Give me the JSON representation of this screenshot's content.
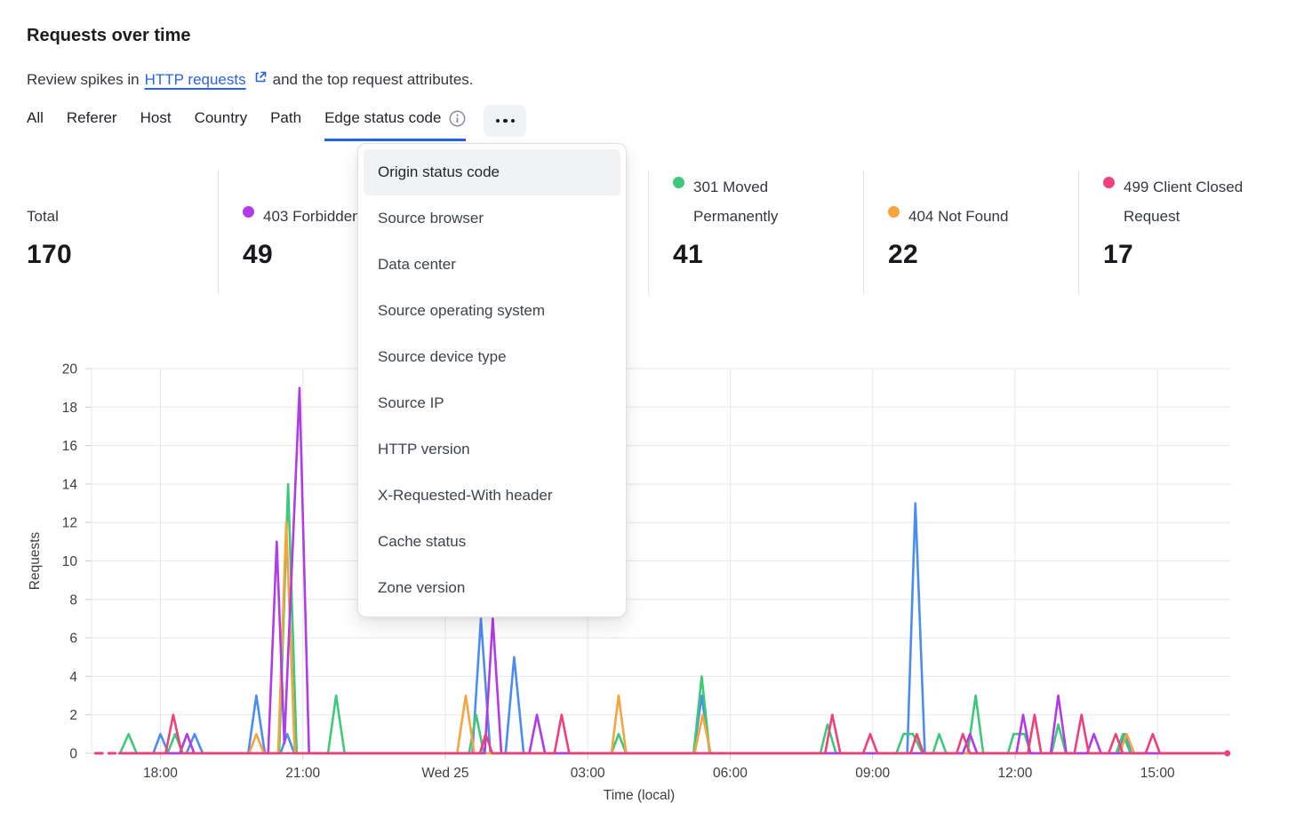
{
  "header": {
    "title": "Requests over time",
    "subtitle_prefix": "Review spikes in",
    "subtitle_link": "HTTP requests",
    "subtitle_suffix": "and the top request attributes."
  },
  "tabs": {
    "items": [
      {
        "label": "All",
        "active": false
      },
      {
        "label": "Referer",
        "active": false
      },
      {
        "label": "Host",
        "active": false
      },
      {
        "label": "Country",
        "active": false
      },
      {
        "label": "Path",
        "active": false
      },
      {
        "label": "Edge status code",
        "active": true,
        "info_icon": true
      }
    ],
    "more_icon": "more-options-ellipsis"
  },
  "stats": {
    "cards": [
      {
        "label": "Total",
        "value": "170",
        "dot_color": null
      },
      {
        "label": "403 Forbidden",
        "value": "49",
        "dot_color": "#b13be8"
      },
      {
        "label": "301 Moved Permanently",
        "value": "41",
        "dot_color": "#3ec97a"
      },
      {
        "label": "404 Not Found",
        "value": "22",
        "dot_color": "#f7a43d"
      },
      {
        "label": "499 Client Closed Request",
        "value": "17",
        "dot_color": "#f0407a"
      }
    ]
  },
  "dropdown": {
    "highlighted_index": 0,
    "items": [
      "Origin status code",
      "Source browser",
      "Data center",
      "Source operating system",
      "Source device type",
      "Source IP",
      "HTTP version",
      "X-Requested-With header",
      "Cache status",
      "Zone version"
    ]
  },
  "chart_data": {
    "type": "line",
    "xlabel": "Time (local)",
    "ylabel": "Requests",
    "ylim": [
      0,
      20
    ],
    "y_tick_step": 2,
    "grid": true,
    "x_domain_hours": [
      0,
      24
    ],
    "x_ticks": [
      {
        "t": 1.45,
        "label": "18:00"
      },
      {
        "t": 4.45,
        "label": "21:00"
      },
      {
        "t": 7.45,
        "label": "Wed 25"
      },
      {
        "t": 10.45,
        "label": "03:00"
      },
      {
        "t": 13.45,
        "label": "06:00"
      },
      {
        "t": 16.45,
        "label": "09:00"
      },
      {
        "t": 19.45,
        "label": "12:00"
      },
      {
        "t": 22.45,
        "label": "15:00"
      }
    ],
    "series": [
      {
        "id": "blue",
        "label": "",
        "color": "#4a8cf2",
        "points": [
          [
            0.6,
            0
          ],
          [
            1.3,
            0
          ],
          [
            1.45,
            1
          ],
          [
            1.62,
            0
          ],
          [
            2.0,
            0
          ],
          [
            2.17,
            1
          ],
          [
            2.34,
            0
          ],
          [
            3.3,
            0
          ],
          [
            3.47,
            3
          ],
          [
            3.65,
            0
          ],
          [
            3.98,
            0
          ],
          [
            4.12,
            1
          ],
          [
            4.27,
            0
          ],
          [
            8.02,
            0
          ],
          [
            8.2,
            7
          ],
          [
            8.4,
            0
          ],
          [
            8.72,
            0
          ],
          [
            8.9,
            5
          ],
          [
            9.1,
            0
          ],
          [
            12.68,
            0
          ],
          [
            12.85,
            3
          ],
          [
            13.02,
            0
          ],
          [
            17.18,
            0
          ],
          [
            17.35,
            13
          ],
          [
            17.55,
            0
          ],
          [
            21.62,
            0
          ],
          [
            21.76,
            1
          ],
          [
            21.9,
            0
          ],
          [
            23.8,
            0
          ]
        ]
      },
      {
        "id": "301-moved-permanently",
        "label": "301 Moved Permanently",
        "color": "#3ec97a",
        "points": [
          [
            0.6,
            0
          ],
          [
            0.78,
            1
          ],
          [
            0.95,
            0
          ],
          [
            1.6,
            0
          ],
          [
            1.76,
            1
          ],
          [
            1.92,
            0
          ],
          [
            3.95,
            0
          ],
          [
            4.14,
            14
          ],
          [
            4.32,
            0
          ],
          [
            4.98,
            0
          ],
          [
            5.15,
            3
          ],
          [
            5.33,
            0
          ],
          [
            7.95,
            0
          ],
          [
            8.1,
            2
          ],
          [
            8.26,
            0
          ],
          [
            10.95,
            0
          ],
          [
            11.1,
            1
          ],
          [
            11.26,
            0
          ],
          [
            12.68,
            0
          ],
          [
            12.85,
            4
          ],
          [
            13.02,
            0
          ],
          [
            15.35,
            0
          ],
          [
            15.5,
            1.5
          ],
          [
            15.68,
            0
          ],
          [
            16.95,
            0
          ],
          [
            17.1,
            1
          ],
          [
            17.3,
            1
          ],
          [
            17.5,
            0
          ],
          [
            17.72,
            0
          ],
          [
            17.85,
            1
          ],
          [
            18.0,
            0
          ],
          [
            18.45,
            0
          ],
          [
            18.62,
            3
          ],
          [
            18.78,
            0
          ],
          [
            19.3,
            0
          ],
          [
            19.42,
            1
          ],
          [
            19.65,
            1
          ],
          [
            19.78,
            0
          ],
          [
            20.22,
            0
          ],
          [
            20.36,
            1.5
          ],
          [
            20.52,
            0
          ],
          [
            21.58,
            0
          ],
          [
            21.72,
            1
          ],
          [
            21.88,
            0
          ],
          [
            23.8,
            0
          ]
        ]
      },
      {
        "id": "404-not-found",
        "label": "404 Not Found",
        "color": "#f7a43d",
        "points": [
          [
            0.6,
            0
          ],
          [
            3.32,
            0
          ],
          [
            3.47,
            1
          ],
          [
            3.63,
            0
          ],
          [
            3.93,
            0
          ],
          [
            4.1,
            12
          ],
          [
            4.28,
            0
          ],
          [
            7.7,
            0
          ],
          [
            7.88,
            3
          ],
          [
            8.06,
            0
          ],
          [
            10.95,
            0
          ],
          [
            11.1,
            3
          ],
          [
            11.26,
            0
          ],
          [
            12.7,
            0
          ],
          [
            12.87,
            2
          ],
          [
            13.04,
            0
          ],
          [
            21.65,
            0
          ],
          [
            21.8,
            1
          ],
          [
            21.96,
            0
          ],
          [
            23.8,
            0
          ]
        ]
      },
      {
        "id": "403-forbidden",
        "label": "403 Forbidden",
        "color": "#b13be8",
        "points": [
          [
            0.6,
            0
          ],
          [
            1.86,
            0
          ],
          [
            2.01,
            1
          ],
          [
            2.16,
            0
          ],
          [
            3.72,
            0
          ],
          [
            3.9,
            11
          ],
          [
            4.06,
            0.5
          ],
          [
            4.38,
            19
          ],
          [
            4.58,
            0
          ],
          [
            8.28,
            0
          ],
          [
            8.45,
            7
          ],
          [
            8.63,
            0
          ],
          [
            9.22,
            0
          ],
          [
            9.38,
            2
          ],
          [
            9.55,
            0
          ],
          [
            18.35,
            0
          ],
          [
            18.5,
            1
          ],
          [
            18.65,
            0
          ],
          [
            19.48,
            0
          ],
          [
            19.62,
            2
          ],
          [
            19.77,
            0
          ],
          [
            20.2,
            0
          ],
          [
            20.36,
            3
          ],
          [
            20.53,
            0
          ],
          [
            20.97,
            0
          ],
          [
            21.11,
            1
          ],
          [
            21.26,
            0
          ],
          [
            23.8,
            0
          ]
        ]
      },
      {
        "id": "499-client-closed-request",
        "label": "499 Client Closed Request",
        "color": "#f0407a",
        "dash_segment": [
          [
            0.08,
            0
          ],
          [
            0.5,
            0
          ]
        ],
        "end_dot": [
          23.92,
          0
        ],
        "points": [
          [
            0.58,
            0
          ],
          [
            1.56,
            0
          ],
          [
            1.72,
            2
          ],
          [
            1.9,
            0
          ],
          [
            8.18,
            0
          ],
          [
            8.3,
            1
          ],
          [
            8.44,
            0
          ],
          [
            9.75,
            0
          ],
          [
            9.9,
            2
          ],
          [
            10.06,
            0
          ],
          [
            15.45,
            0
          ],
          [
            15.6,
            2
          ],
          [
            15.77,
            0
          ],
          [
            16.25,
            0
          ],
          [
            16.4,
            1
          ],
          [
            16.55,
            0
          ],
          [
            17.25,
            0
          ],
          [
            17.38,
            1
          ],
          [
            17.52,
            0
          ],
          [
            18.22,
            0
          ],
          [
            18.35,
            1
          ],
          [
            18.5,
            0
          ],
          [
            19.72,
            0
          ],
          [
            19.86,
            2
          ],
          [
            20.0,
            0
          ],
          [
            20.7,
            0
          ],
          [
            20.85,
            2
          ],
          [
            21.0,
            0
          ],
          [
            21.42,
            0
          ],
          [
            21.57,
            1
          ],
          [
            21.72,
            0
          ],
          [
            22.2,
            0
          ],
          [
            22.35,
            1
          ],
          [
            22.5,
            0
          ],
          [
            23.85,
            0
          ]
        ]
      }
    ]
  }
}
